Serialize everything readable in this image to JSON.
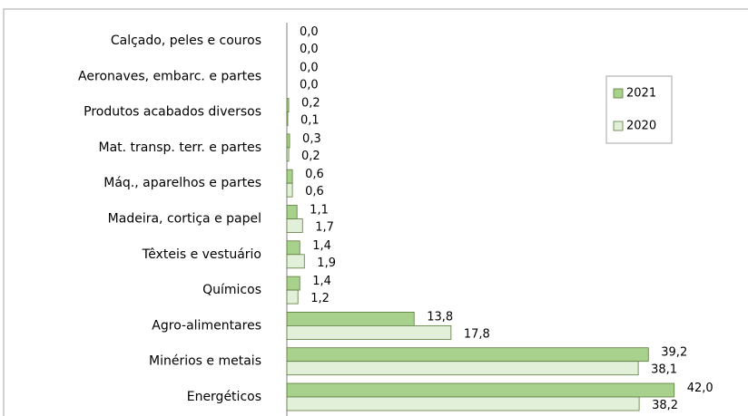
{
  "chart_data": {
    "type": "hbar",
    "categories": [
      "Calçado, peles e couros",
      "Aeronaves, embarc. e partes",
      "Produtos acabados diversos",
      "Mat. transp. terr. e partes",
      "Máq., aparelhos e partes",
      "Madeira, cortiça e papel",
      "Têxteis e vestuário",
      "Químicos",
      "Agro-alimentares",
      "Minérios e metais",
      "Energéticos"
    ],
    "series": [
      {
        "name": "2021",
        "color": "#a9d18e",
        "values": [
          0.0,
          0.0,
          0.2,
          0.3,
          0.6,
          1.1,
          1.4,
          1.4,
          13.8,
          39.2,
          42.0
        ],
        "value_labels": [
          "0,0",
          "0,0",
          "0,2",
          "0,3",
          "0,6",
          "1,1",
          "1,4",
          "1,4",
          "13,8",
          "39,2",
          "42,0"
        ]
      },
      {
        "name": "2020",
        "color": "#e2efd9",
        "values": [
          0.0,
          0.0,
          0.1,
          0.2,
          0.6,
          1.7,
          1.9,
          1.2,
          17.8,
          38.1,
          38.2
        ],
        "value_labels": [
          "0,0",
          "0,0",
          "0,1",
          "0,2",
          "0,6",
          "1,7",
          "1,9",
          "1,2",
          "17,8",
          "38,1",
          "38,2"
        ]
      }
    ],
    "xlim": [
      0,
      50
    ],
    "legend": "upper right"
  }
}
